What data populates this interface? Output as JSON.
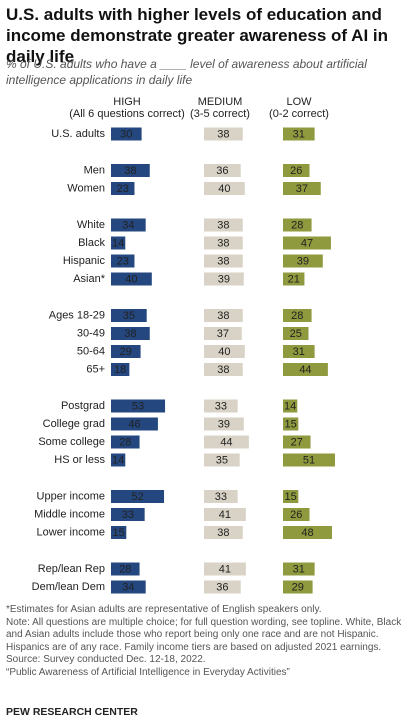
{
  "chart_data": {
    "type": "bar",
    "orientation": "horizontal",
    "title": "U.S. adults with higher levels of education and income demonstrate greater awareness of AI in daily life",
    "subtitle": "% of U.S. adults who have a ____ level of awareness about artificial intelligence applications in daily life",
    "categories": [
      "U.S. adults",
      "Men",
      "Women",
      "White",
      "Black",
      "Hispanic",
      "Asian*",
      "Ages 18-29",
      "30-49",
      "50-64",
      "65+",
      "Postgrad",
      "College grad",
      "Some college",
      "HS or less",
      "Upper income",
      "Middle income",
      "Lower income",
      "Rep/lean Rep",
      "Dem/lean Dem"
    ],
    "series": [
      {
        "name": "HIGH",
        "description": "(All 6 questions correct)",
        "color": "#24477f",
        "label_color": "#ffffff",
        "values": [
          30,
          38,
          23,
          34,
          14,
          23,
          40,
          35,
          38,
          29,
          18,
          53,
          46,
          28,
          14,
          52,
          33,
          15,
          28,
          34
        ]
      },
      {
        "name": "MEDIUM",
        "description": "(3-5 correct)",
        "color": "#d8d3c6",
        "label_color": "#222222",
        "values": [
          38,
          36,
          40,
          38,
          38,
          38,
          39,
          38,
          37,
          40,
          38,
          33,
          39,
          44,
          35,
          33,
          41,
          38,
          41,
          36
        ]
      },
      {
        "name": "LOW",
        "description": "(0-2 correct)",
        "color": "#8f9a3e",
        "label_color": "#ffffff",
        "values": [
          31,
          26,
          37,
          28,
          47,
          39,
          21,
          28,
          25,
          31,
          44,
          14,
          15,
          27,
          51,
          15,
          26,
          48,
          31,
          29
        ]
      }
    ],
    "notes": [
      "*Estimates for Asian adults are representative of English speakers only.",
      "Note: All questions are multiple choice; for full question wording, see topline. White, Black and Asian adults include those who report being only one race and are not Hispanic. Hispanics are of any race. Family income tiers are based on adjusted 2021 earnings.",
      "Source: Survey conducted Dec. 12-18, 2022.",
      "“Public Awareness of Artificial Intelligence in Everyday Activities”"
    ],
    "source": "PEW RESEARCH CENTER"
  }
}
